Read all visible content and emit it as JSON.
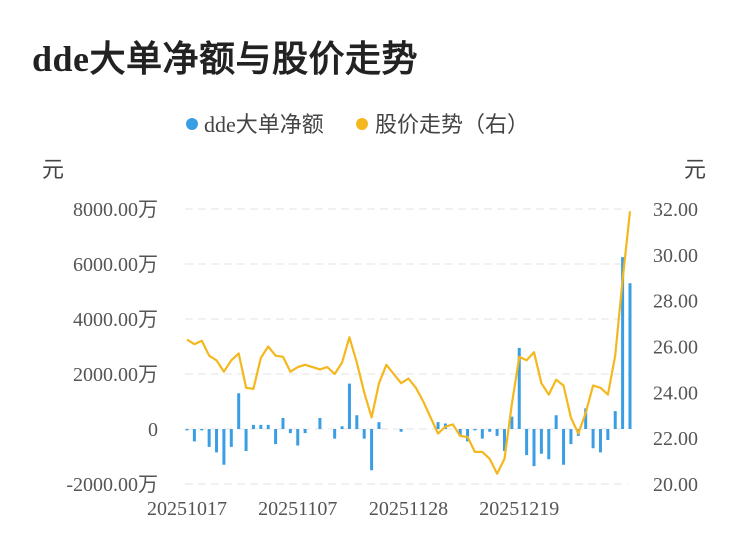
{
  "title": "dde大单净额与股价走势",
  "chart_data": {
    "type": "bar+line",
    "legend": [
      "dde大单净额",
      "股价走势（右）"
    ],
    "left_unit": "元",
    "right_unit": "元",
    "left_ticks": [
      "8000.00万",
      "6000.00万",
      "4000.00万",
      "2000.00万",
      "0",
      "-2000.00万"
    ],
    "right_ticks": [
      "32.00",
      "30.00",
      "28.00",
      "26.00",
      "24.00",
      "22.00",
      "20.00"
    ],
    "left_ylim": [
      -2000,
      8000
    ],
    "right_ylim": [
      20,
      32
    ],
    "x_ticks": [
      "20251017",
      "20251107",
      "20251128",
      "20251219"
    ],
    "colors": {
      "bar": "#3a9ee4",
      "line": "#f5b71e"
    },
    "series": [
      {
        "name": "dde大单净额",
        "axis": "left",
        "unit": "万元",
        "values": [
          -50,
          -450,
          -50,
          -650,
          -850,
          -1300,
          -650,
          1300,
          -800,
          150,
          150,
          150,
          -550,
          400,
          -150,
          -600,
          -150,
          0,
          400,
          0,
          -350,
          100,
          1650,
          500,
          -350,
          -1500,
          250,
          0,
          0,
          -100,
          0,
          0,
          0,
          0,
          250,
          200,
          0,
          -250,
          -450,
          -50,
          -350,
          -100,
          -250,
          -800,
          450,
          2950,
          -950,
          -1350,
          -900,
          -1100,
          500,
          -1300,
          -550,
          -250,
          750,
          -700,
          -850,
          -400,
          650,
          6250,
          5300
        ]
      },
      {
        "name": "股价走势（右）",
        "axis": "right",
        "unit": "元",
        "values": [
          26.3,
          26.1,
          26.25,
          25.6,
          25.4,
          24.9,
          25.4,
          25.7,
          24.2,
          24.15,
          25.5,
          26.0,
          25.6,
          25.55,
          24.9,
          25.1,
          25.2,
          25.1,
          25.0,
          25.1,
          24.8,
          25.3,
          26.4,
          25.3,
          24.0,
          22.9,
          24.4,
          25.2,
          24.8,
          24.4,
          24.6,
          24.2,
          23.6,
          22.9,
          22.2,
          22.5,
          22.6,
          22.1,
          22.05,
          21.4,
          21.4,
          21.1,
          20.45,
          21.1,
          23.5,
          25.55,
          25.4,
          25.75,
          24.4,
          23.9,
          24.55,
          24.3,
          22.9,
          22.2,
          23.1,
          24.3,
          24.2,
          23.9,
          25.6,
          28.9,
          31.9
        ]
      }
    ]
  }
}
